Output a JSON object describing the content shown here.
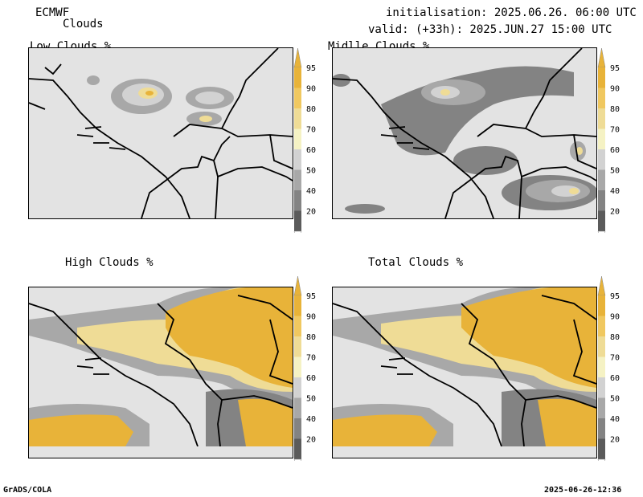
{
  "header": {
    "model": "ECMWF",
    "product": "Clouds",
    "init": "initialisation: 2025.06.26. 06:00 UTC",
    "valid": "valid: (+33h): 2025.JUN.27 15:00 UTC"
  },
  "panels": [
    {
      "title": "Low Clouds %"
    },
    {
      "title": "Midlle Clouds %"
    },
    {
      "title": "High Clouds %"
    },
    {
      "title": "Total Clouds %"
    }
  ],
  "colorbar": {
    "labels": [
      "95",
      "90",
      "80",
      "70",
      "60",
      "50",
      "40",
      "20"
    ],
    "colors": [
      "#e8b339",
      "#f0c860",
      "#efdc96",
      "#f5f2c4",
      "#d2d2d2",
      "#a8a8a8",
      "#838383",
      "#5b5b5b"
    ]
  },
  "footer": {
    "left": "GrADS/COLA",
    "right": "2025-06-26-12:36"
  }
}
